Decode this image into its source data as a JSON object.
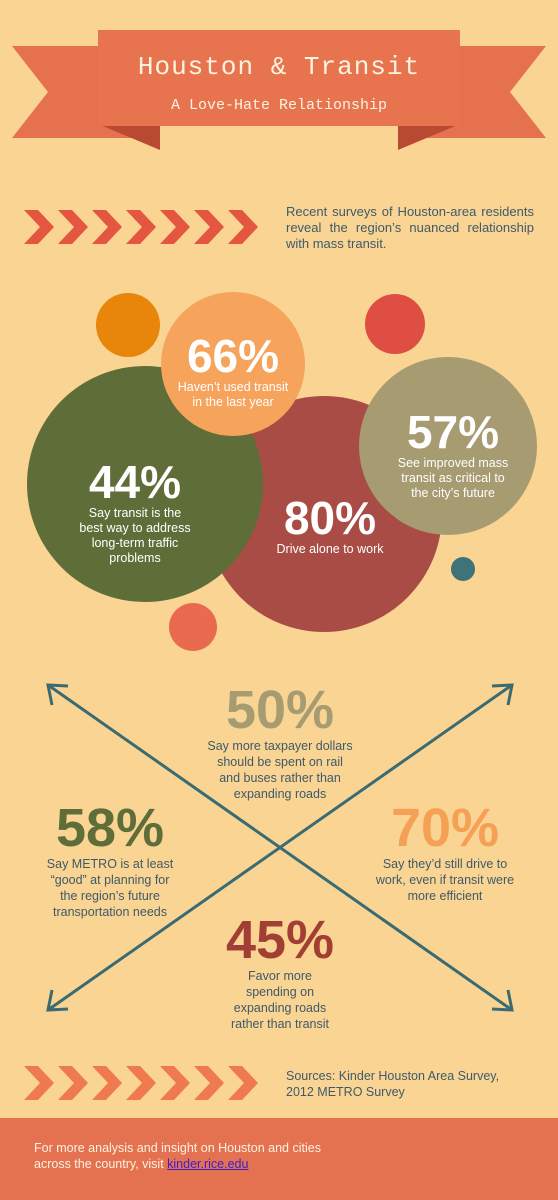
{
  "header": {
    "title": "Houston & Transit",
    "subtitle": "A Love-Hate Relationship"
  },
  "intro": {
    "text": "Recent surveys of Houston-area residents reveal the region’s nuanced relationship with mass transit."
  },
  "circles": {
    "c66": {
      "value": "66%",
      "label_line1": "Haven’t used transit",
      "label_line2": "in the last year",
      "color": "#f6a35c"
    },
    "c57": {
      "value": "57%",
      "label_line1": "See improved mass",
      "label_line2": "transit as critical to",
      "label_line3": "the city’s future",
      "color": "#a69b71"
    },
    "c44": {
      "value": "44%",
      "label_line1": "Say transit is the",
      "label_line2": "best way to address",
      "label_line3": "long-term traffic",
      "label_line4": "problems",
      "color": "#5f6e39"
    },
    "c80": {
      "value": "80%",
      "label_line1": "Drive alone to work",
      "color": "#a94c45"
    }
  },
  "stats": {
    "s50": {
      "value": "50%",
      "line1": "Say more taxpayer dollars",
      "line2": "should be spent on rail",
      "line3": "and buses rather than",
      "line4": "expanding roads",
      "color": "#a69b71"
    },
    "s58": {
      "value": "58%",
      "line1": "Say METRO is at least",
      "line2": "“good” at planning for",
      "line3": "the region’s future",
      "line4": "transportation needs",
      "color": "#5f6e39"
    },
    "s70": {
      "value": "70%",
      "line1": "Say they’d still drive to",
      "line2": "work, even if transit were",
      "line3": "more efficient",
      "color": "#f5a054"
    },
    "s45": {
      "value": "45%",
      "line1": "Favor more",
      "line2": "spending on",
      "line3": "expanding roads",
      "line4": "rather than transit",
      "color": "#a23f35"
    }
  },
  "sources": {
    "line1": "Sources: Kinder Houston Area Survey,",
    "line2": "2012 METRO Survey"
  },
  "footer": {
    "line1": "For more analysis and insight on Houston and cities",
    "line2_prefix": "across the country, visit ",
    "link": "kinder.rice.edu"
  },
  "colors": {
    "background": "#f9d493",
    "accent": "#e4714f",
    "text": "#3f5a6a",
    "arrow": "#3b6b72"
  }
}
